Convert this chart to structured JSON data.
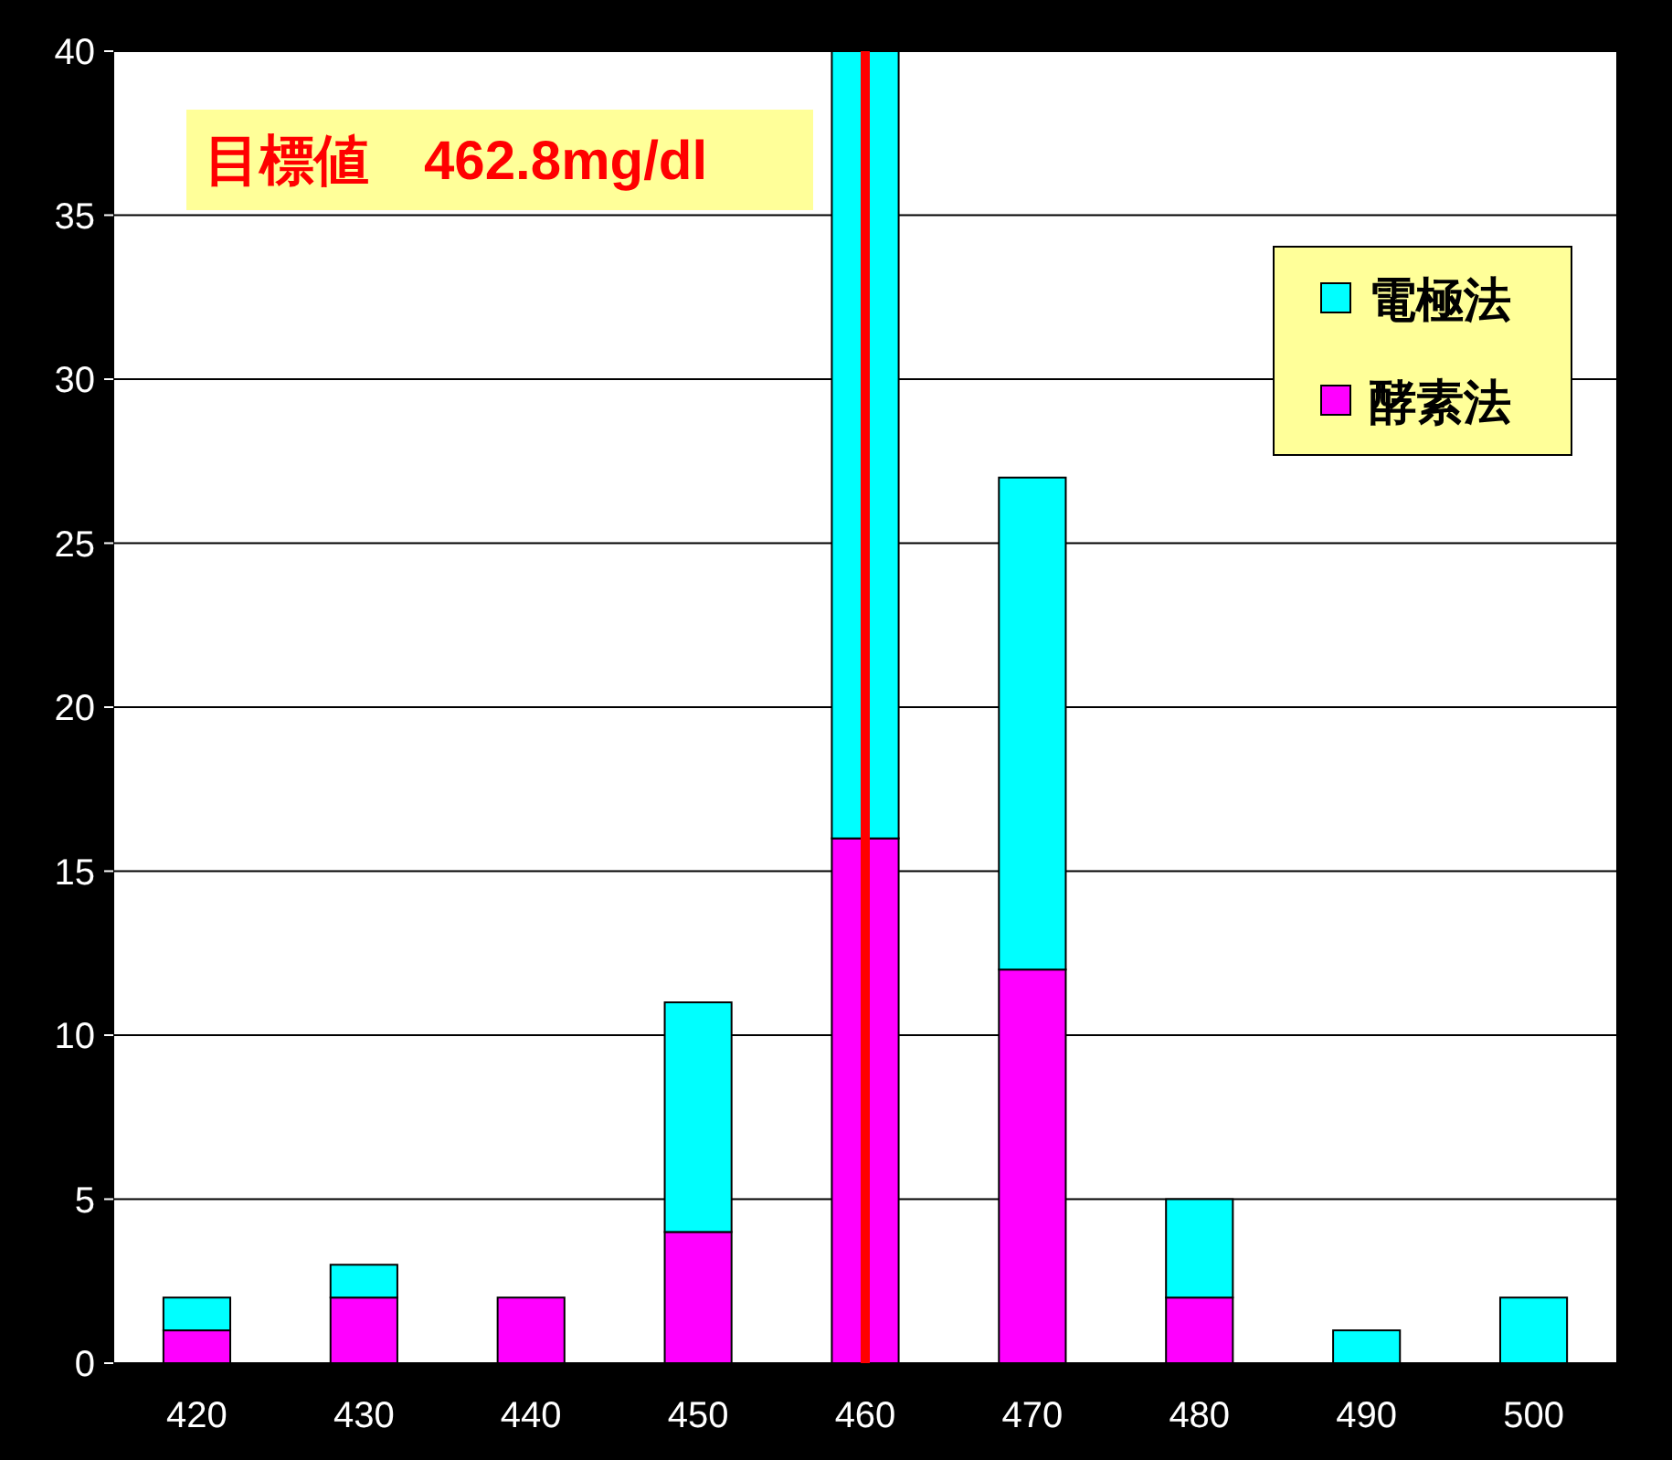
{
  "chart_data": {
    "type": "bar",
    "stacked": true,
    "x": [
      420,
      430,
      440,
      450,
      460,
      470,
      480,
      490,
      500
    ],
    "series": [
      {
        "name": "酵素法",
        "color": "#ff00ff",
        "values": [
          1,
          2,
          2,
          4,
          16,
          12,
          2,
          0,
          0
        ]
      },
      {
        "name": "電極法",
        "color": "#00ffff",
        "values": [
          1,
          1,
          0,
          7,
          24,
          15,
          3,
          1,
          2
        ]
      }
    ],
    "xlim": [
      415,
      505
    ],
    "xticks": [
      420,
      430,
      440,
      450,
      460,
      470,
      480,
      490,
      500
    ],
    "ylim": [
      0,
      40
    ],
    "yticks": [
      0,
      5,
      10,
      15,
      20,
      25,
      30,
      35,
      40
    ],
    "grid": "y",
    "legend": "top right",
    "ref_lines": [
      {
        "axis": "x",
        "value": 460,
        "color": "#ff0000"
      }
    ],
    "annotations": [
      "目標値　462.8mg/dl"
    ]
  }
}
